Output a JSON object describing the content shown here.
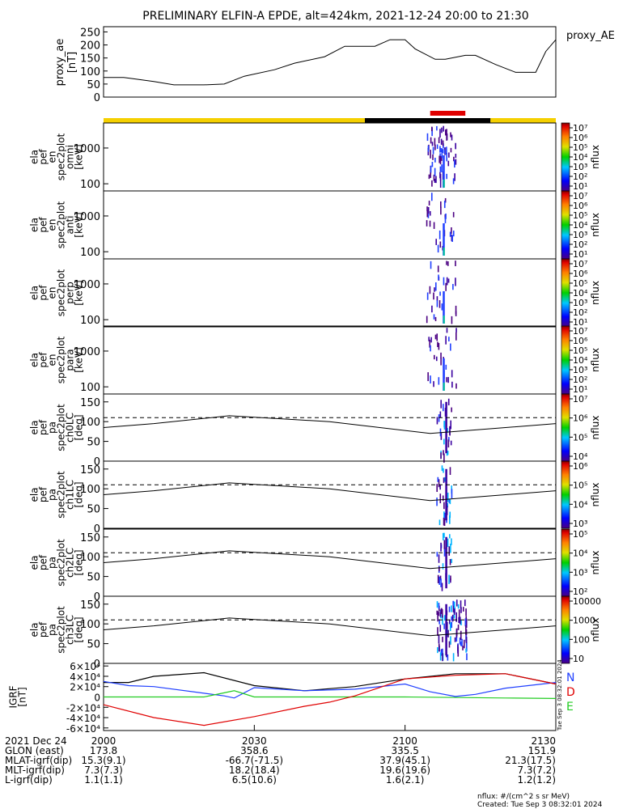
{
  "title": "PRELIMINARY ELFIN-A EPDE, alt=424km, 2021-12-24 20:00 to 21:30",
  "colors": {
    "yellow": "#f5d000",
    "black": "#000000",
    "red": "#e00000",
    "blue": "#1f3fff",
    "green": "#22cc22"
  },
  "proxy": {
    "ylabel": [
      "proxy_ae",
      "[nT]"
    ],
    "legend": "proxy_AE",
    "yticks": [
      "0",
      "50",
      "100",
      "150",
      "200",
      "250"
    ],
    "ylim": [
      0,
      270
    ]
  },
  "status_bar": {
    "segments": [
      {
        "from": 0,
        "to": 52,
        "color": "yellow"
      },
      {
        "from": 52,
        "to": 77,
        "color": "black"
      },
      {
        "from": 77,
        "to": 90,
        "color": "yellow"
      }
    ],
    "marker": {
      "from": 65,
      "to": 72,
      "color": "red"
    }
  },
  "spec_panels": [
    {
      "label": [
        "ela",
        "pef",
        "en",
        "spec2plot",
        "omni",
        "[keV]"
      ],
      "cbar": [
        "10⁷",
        "10⁶",
        "10⁵",
        "10⁴",
        "10³",
        "10²",
        "10¹"
      ],
      "cbar_label": "nflux"
    },
    {
      "label": [
        "ela",
        "pef",
        "en",
        "spec2plot",
        "anti",
        "[keV]"
      ],
      "cbar": [
        "10⁷",
        "10⁶",
        "10⁵",
        "10⁴",
        "10³",
        "10²",
        "10¹"
      ],
      "cbar_label": "nflux"
    },
    {
      "label": [
        "ela",
        "pef",
        "en",
        "spec2plot",
        "perp",
        "[keV]"
      ],
      "cbar": [
        "10⁷",
        "10⁶",
        "10⁵",
        "10⁴",
        "10³",
        "10²",
        "10¹"
      ],
      "cbar_label": "nflux"
    },
    {
      "label": [
        "ela",
        "pef",
        "en",
        "spec2plot",
        "para",
        "[keV]"
      ],
      "cbar": [
        "10⁷",
        "10⁶",
        "10⁵",
        "10⁴",
        "10³",
        "10²",
        "10¹"
      ],
      "cbar_label": "nflux"
    }
  ],
  "energy_ticks": [
    "100",
    "1000"
  ],
  "pa_panels": [
    {
      "label": [
        "ela",
        "pef",
        "pa",
        "spec2plot",
        "ch0LC",
        "[deg]"
      ],
      "cbar": [
        "10⁷",
        "10⁶",
        "10⁵",
        "10⁴"
      ],
      "cbar_label": "nflux"
    },
    {
      "label": [
        "ela",
        "pef",
        "pa",
        "spec2plot",
        "ch1LC",
        "[deg]"
      ],
      "cbar": [
        "10⁶",
        "10⁵",
        "10⁴",
        "10³"
      ],
      "cbar_label": "nflux"
    },
    {
      "label": [
        "ela",
        "pef",
        "pa",
        "spec2plot",
        "ch2LC",
        "[deg]"
      ],
      "cbar": [
        "10⁵",
        "10⁴",
        "10³",
        "10²"
      ],
      "cbar_label": "nflux"
    },
    {
      "label": [
        "ela",
        "pef",
        "pa",
        "spec2plot",
        "ch3LC",
        "[deg]"
      ],
      "cbar": [
        "10000",
        "1000",
        "100",
        "10"
      ],
      "cbar_label": "nflux"
    }
  ],
  "pa_ticks": [
    "0",
    "50",
    "100",
    "150"
  ],
  "pa_ylim": [
    0,
    170
  ],
  "igrf": {
    "ylabel": [
      "IGRF",
      "[nT]"
    ],
    "yticks": [
      "-6×10⁴",
      "-4×10⁴",
      "-2×10⁴",
      "0",
      "2×10⁴",
      "4×10⁴",
      "6×10⁴"
    ],
    "ylim": [
      -65000,
      65000
    ],
    "legend": [
      "N",
      "D",
      "E"
    ],
    "side_text": "Tue Sep 3 08:32:01 2024"
  },
  "chart_data": {
    "type": "line",
    "x_range_min": [
      0,
      90
    ],
    "proxy_ae": {
      "x": [
        0,
        4,
        6,
        10,
        14,
        16,
        20,
        24,
        28,
        34,
        38,
        44,
        48,
        54,
        57,
        60,
        62,
        66,
        68,
        72,
        74,
        78,
        82,
        86,
        88,
        90
      ],
      "y": [
        75,
        75,
        70,
        60,
        47,
        47,
        47,
        50,
        80,
        105,
        130,
        155,
        195,
        195,
        220,
        220,
        185,
        145,
        145,
        160,
        160,
        125,
        95,
        95,
        175,
        220
      ]
    },
    "pa_loss_cone": {
      "x": [
        0,
        10,
        25,
        45,
        65,
        80,
        90
      ],
      "y": [
        85,
        95,
        115,
        100,
        70,
        85,
        95
      ]
    },
    "pa_dashed": 110,
    "igrf_series": [
      {
        "name": "black",
        "x": [
          0,
          5,
          10,
          20,
          30,
          40,
          50,
          60,
          70,
          80,
          90
        ],
        "y": [
          28000,
          28000,
          40000,
          47000,
          22000,
          12000,
          20000,
          35000,
          45000,
          45000,
          25000
        ]
      },
      {
        "name": "blue",
        "x": [
          0,
          5,
          10,
          24,
          26,
          30,
          40,
          50,
          60,
          65,
          70,
          74,
          80,
          90
        ],
        "y": [
          30000,
          22000,
          20000,
          2000,
          -2000,
          18000,
          12000,
          15000,
          25000,
          10000,
          1000,
          5000,
          17000,
          28000
        ]
      },
      {
        "name": "green",
        "x": [
          0,
          20,
          24,
          26,
          30,
          45,
          60,
          80,
          90
        ],
        "y": [
          0,
          0,
          8000,
          12000,
          0,
          0,
          0,
          -2000,
          -3000
        ]
      },
      {
        "name": "red",
        "x": [
          0,
          10,
          20,
          30,
          40,
          45,
          50,
          60,
          70,
          80,
          90
        ],
        "y": [
          -15000,
          -40000,
          -55000,
          -38000,
          -18000,
          -10000,
          2000,
          35000,
          42000,
          45000,
          25000
        ]
      }
    ]
  },
  "footer_rows": [
    [
      "2021 Dec 24",
      "2000",
      "2030",
      "2100",
      "2130"
    ],
    [
      "GLON (east)",
      "173.8",
      "358.6",
      "335.5",
      "151.9"
    ],
    [
      "MLAT-igrf(dip)",
      "15.3(9.1)",
      "-66.7(-71.5)",
      "37.9(45.1)",
      "21.3(17.5)"
    ],
    [
      "MLT-igrf(dip)",
      "7.3(7.3)",
      "18.2(18.4)",
      "19.6(19.6)",
      "7.3(7.2)"
    ],
    [
      "L-igrf(dip)",
      "1.1(1.1)",
      "6.5(10.6)",
      "1.6(2.1)",
      "1.2(1.2)"
    ]
  ],
  "footnote": [
    "nflux: #/(cm^2 s sr MeV)",
    "Created: Tue Sep  3 08:32:01 2024"
  ]
}
